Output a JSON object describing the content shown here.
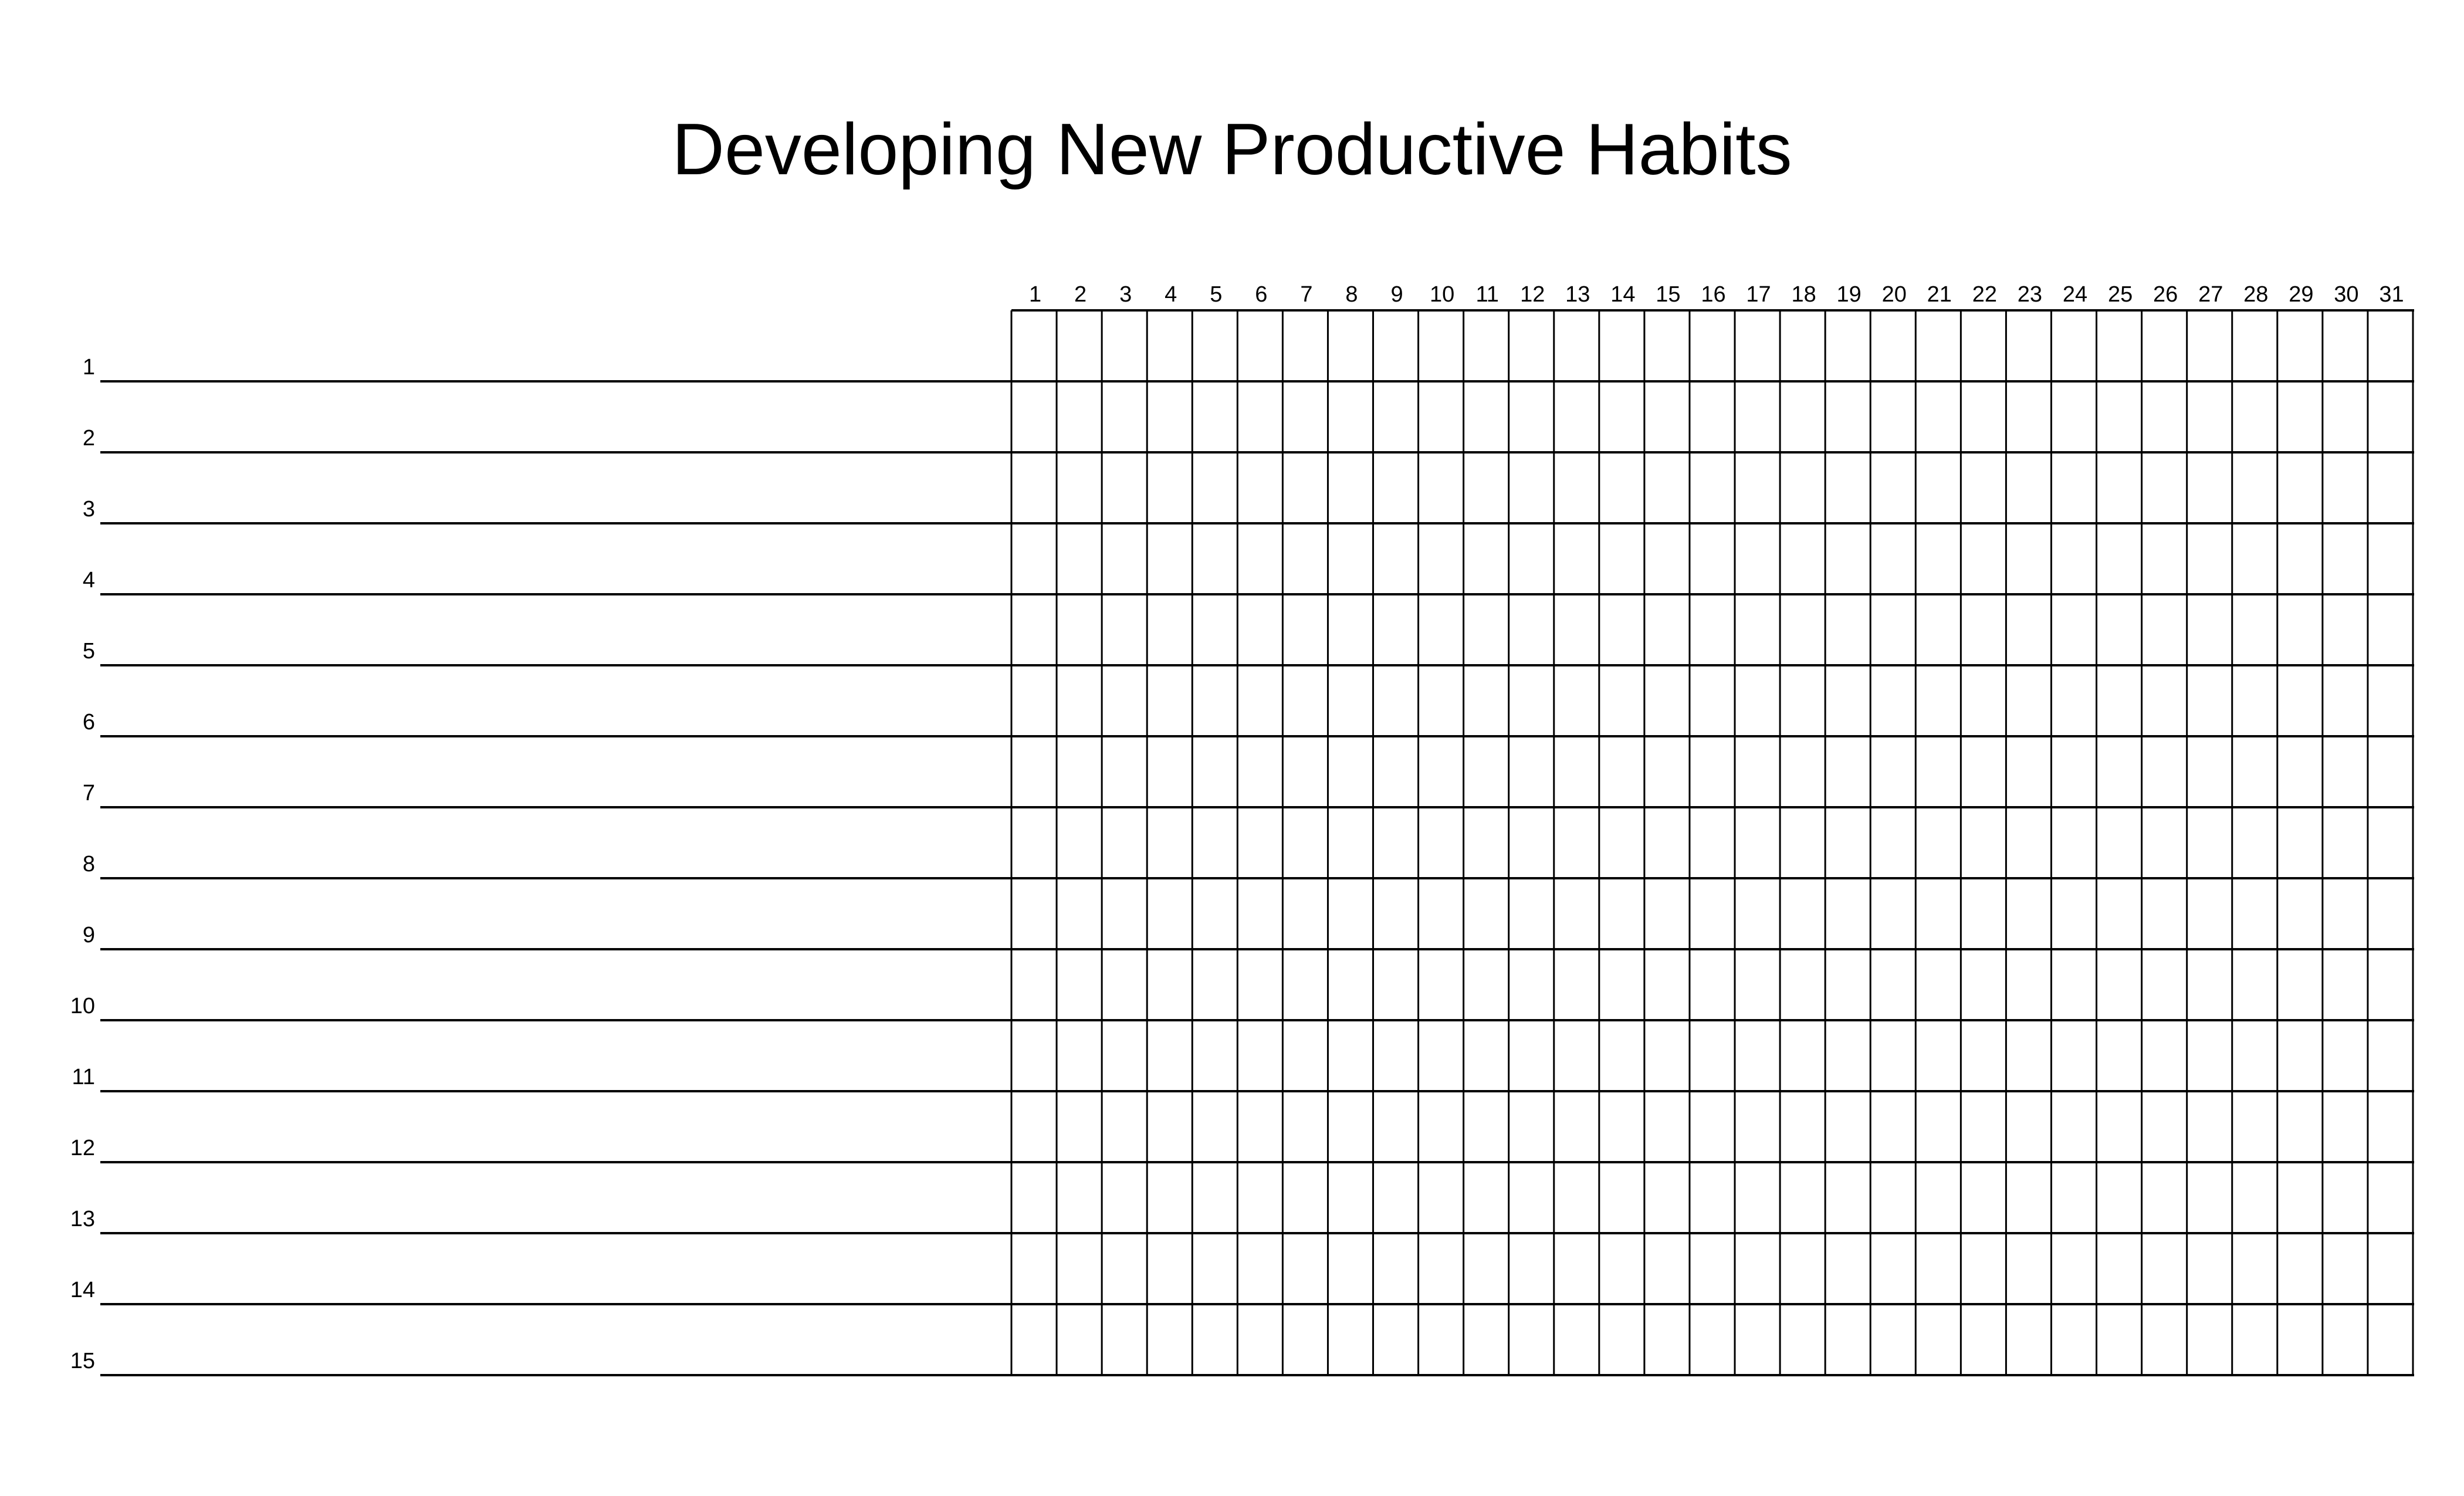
{
  "title": "Developing New Productive Habits",
  "day_headers": [
    "1",
    "2",
    "3",
    "4",
    "5",
    "6",
    "7",
    "8",
    "9",
    "10",
    "11",
    "12",
    "13",
    "14",
    "15",
    "16",
    "17",
    "18",
    "19",
    "20",
    "21",
    "22",
    "23",
    "24",
    "25",
    "26",
    "27",
    "28",
    "29",
    "30",
    "31"
  ],
  "habit_rows": [
    "1",
    "2",
    "3",
    "4",
    "5",
    "6",
    "7",
    "8",
    "9",
    "10",
    "11",
    "12",
    "13",
    "14",
    "15"
  ],
  "colors": {
    "ink": "#000000",
    "background": "#ffffff"
  }
}
